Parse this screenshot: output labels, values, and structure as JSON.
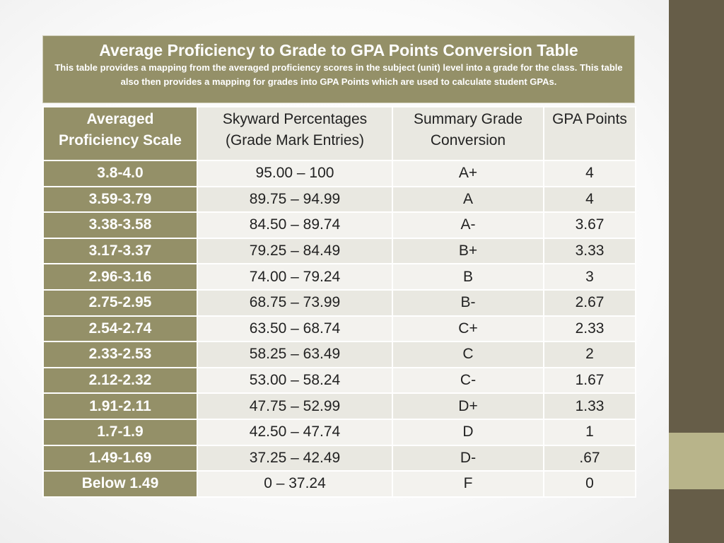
{
  "title": "Average Proficiency to Grade to GPA Points Conversion Table",
  "subtitle": "This table provides a mapping from the averaged proficiency scores in the subject (unit) level into a grade for the class.  This table also then provides a mapping for grades into GPA Points which are used to calculate student GPAs.",
  "headers": {
    "proficiency": [
      "Averaged",
      "Proficiency Scale"
    ],
    "skyward": [
      "Skyward Percentages",
      "(Grade Mark Entries)"
    ],
    "summary": [
      "Summary Grade",
      "Conversion"
    ],
    "gpa": "GPA Points"
  },
  "rows": [
    {
      "scale": "3.8-4.0",
      "percent": "95.00 – 100",
      "grade": "A+",
      "gpa": "4"
    },
    {
      "scale": "3.59-3.79",
      "percent": "89.75 – 94.99",
      "grade": "A",
      "gpa": "4"
    },
    {
      "scale": "3.38-3.58",
      "percent": "84.50 – 89.74",
      "grade": "A-",
      "gpa": "3.67"
    },
    {
      "scale": "3.17-3.37",
      "percent": "79.25 – 84.49",
      "grade": "B+",
      "gpa": "3.33"
    },
    {
      "scale": "2.96-3.16",
      "percent": "74.00 – 79.24",
      "grade": "B",
      "gpa": "3"
    },
    {
      "scale": "2.75-2.95",
      "percent": "68.75 – 73.99",
      "grade": "B-",
      "gpa": "2.67"
    },
    {
      "scale": "2.54-2.74",
      "percent": "63.50 – 68.74",
      "grade": "C+",
      "gpa": "2.33"
    },
    {
      "scale": "2.33-2.53",
      "percent": "58.25 – 63.49",
      "grade": "C",
      "gpa": "2"
    },
    {
      "scale": "2.12-2.32",
      "percent": "53.00 – 58.24",
      "grade": "C-",
      "gpa": "1.67"
    },
    {
      "scale": "1.91-2.11",
      "percent": "47.75 – 52.99",
      "grade": "D+",
      "gpa": "1.33"
    },
    {
      "scale": "1.7-1.9",
      "percent": "42.50 – 47.74",
      "grade": "D",
      "gpa": "1"
    },
    {
      "scale": "1.49-1.69",
      "percent": "37.25 – 42.49",
      "grade": "D-",
      "gpa": ".67"
    },
    {
      "scale": "Below 1.49",
      "percent": "0 – 37.24",
      "grade": "F",
      "gpa": "0"
    }
  ]
}
